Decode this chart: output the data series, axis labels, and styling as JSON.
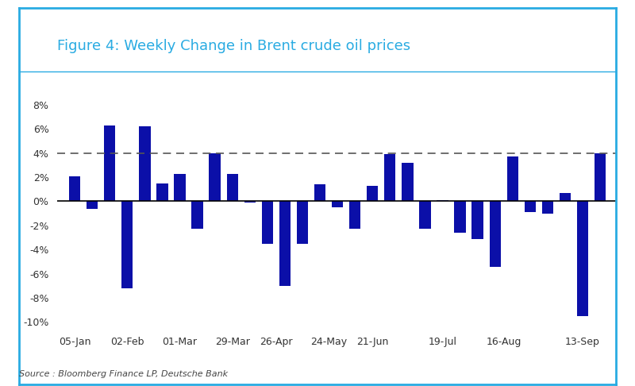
{
  "title": "Figure 4: Weekly Change in Brent crude oil prices",
  "source": "Source : Bloomberg Finance LP, Deutsche Bank",
  "bar_color": "#0b0fa8",
  "background_color": "#ffffff",
  "border_color": "#29ABE2",
  "title_color": "#29ABE2",
  "source_color": "#555555",
  "dashed_line_y": 4.0,
  "ylim": [
    -10.5,
    9.0
  ],
  "yticks": [
    -10,
    -8,
    -6,
    -4,
    -2,
    0,
    2,
    4,
    6,
    8
  ],
  "ytick_labels": [
    "-10%",
    "-8%",
    "-6%",
    "-4%",
    "-2%",
    "0%",
    "2%",
    "4%",
    "6%",
    "8%"
  ],
  "values": [
    2.1,
    -0.6,
    6.3,
    -7.2,
    6.2,
    1.5,
    2.3,
    -2.3,
    4.0,
    2.3,
    -0.1,
    -3.5,
    -7.0,
    -3.5,
    1.4,
    -0.5,
    -2.3,
    1.3,
    3.9,
    3.2,
    -2.3,
    0.1,
    -2.6,
    -3.1,
    -5.4,
    3.7,
    -0.9,
    -1.0,
    0.7,
    -9.5,
    4.0
  ],
  "xtick_labels": [
    "05-Jan",
    "02-Feb",
    "01-Mar",
    "29-Mar",
    "26-Apr",
    "24-May",
    "21-Jun",
    "19-Jul",
    "16-Aug",
    "13-Sep"
  ],
  "xtick_positions": [
    0.5,
    3,
    6.5,
    9.5,
    12,
    15,
    17.5,
    21,
    25,
    29
  ],
  "figsize": [
    8.0,
    4.86
  ],
  "dpi": 100
}
